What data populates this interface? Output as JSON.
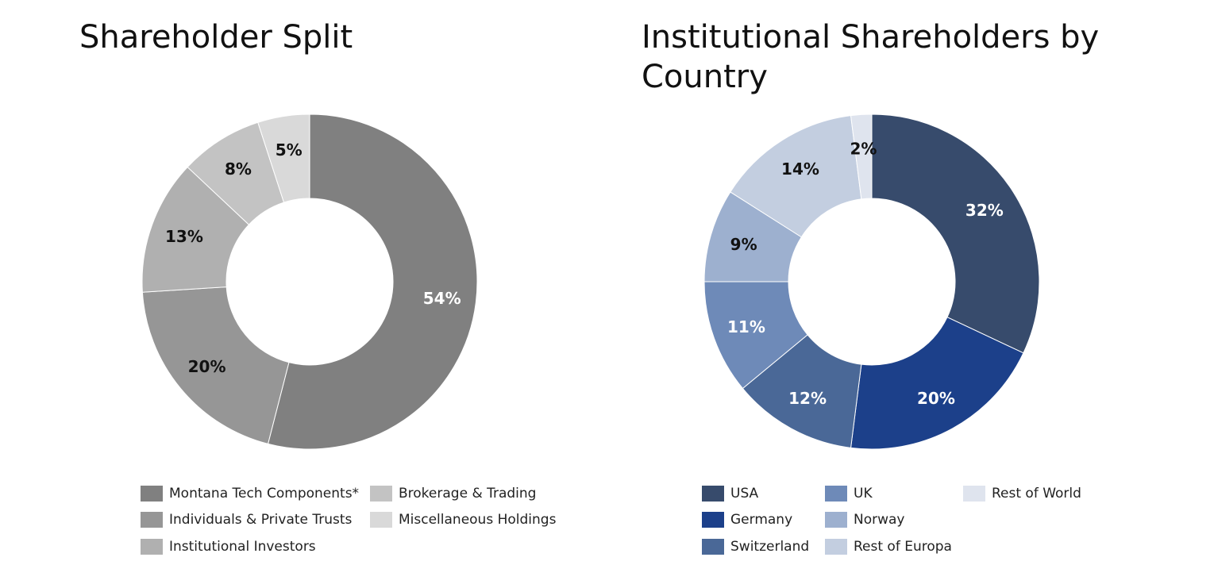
{
  "chart_data": [
    {
      "type": "pie",
      "title": "Shareholder Split",
      "categories": [
        "Montana Tech Components*",
        "Individuals & Private Trusts",
        "Institutional Investors",
        "Brokerage & Trading",
        "Miscellaneous Holdings"
      ],
      "values": [
        54,
        20,
        13,
        8,
        5
      ],
      "labels": [
        "54%",
        "20%",
        "13%",
        "8%",
        "5%"
      ],
      "colors": [
        "#808080",
        "#969696",
        "#b0b0b0",
        "#c3c3c3",
        "#d9d9d9"
      ],
      "label_colors": [
        "#ffffff",
        "#111111",
        "#111111",
        "#111111",
        "#111111"
      ],
      "legend_placement": "bottom"
    },
    {
      "type": "pie",
      "title": "Institutional Shareholders by Country",
      "categories": [
        "USA",
        "Germany",
        "Switzerland",
        "UK",
        "Norway",
        "Rest of Europa",
        "Rest of World"
      ],
      "values": [
        32,
        20,
        12,
        11,
        9,
        14,
        2
      ],
      "labels": [
        "32%",
        "20%",
        "12%",
        "11%",
        "9%",
        "14%",
        "2%"
      ],
      "colors": [
        "#374b6c",
        "#1c408a",
        "#4a6897",
        "#6e8ab8",
        "#9db0cf",
        "#c3cee0",
        "#dfe4ee"
      ],
      "label_colors": [
        "#ffffff",
        "#ffffff",
        "#ffffff",
        "#ffffff",
        "#111111",
        "#111111",
        "#111111"
      ],
      "legend_placement": "bottom"
    }
  ]
}
